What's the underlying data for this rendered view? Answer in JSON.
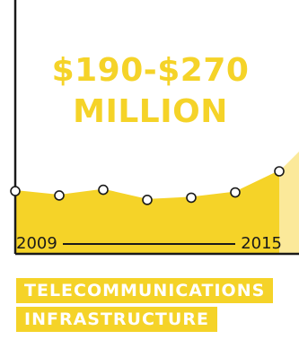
{
  "colors": {
    "accent": "#f5d328",
    "accent_light": "#fbe99a",
    "axis": "#1a1a1a"
  },
  "value_range": {
    "line1": "$190-$270",
    "line2": "MILLION"
  },
  "category": {
    "line1": "TELECOMMUNICATIONS",
    "line2": "INFRASTRUCTURE"
  },
  "chart_data": {
    "type": "area",
    "x": [
      2009,
      2010,
      2011,
      2012,
      2013,
      2014,
      2015
    ],
    "tick_labels": [
      "2009",
      "2015"
    ],
    "series": [
      {
        "values": [
          0.55,
          0.45,
          0.58,
          0.35,
          0.4,
          0.52,
          1.0
        ]
      }
    ],
    "grid": false,
    "legend": "none"
  }
}
